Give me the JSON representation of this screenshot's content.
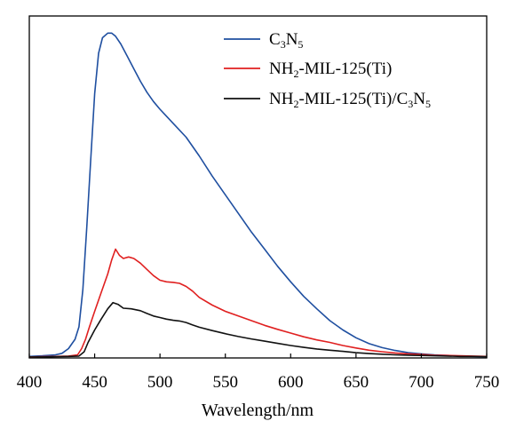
{
  "chart_data": {
    "type": "line",
    "title": "",
    "xlabel": "Wavelength/nm",
    "ylabel": "",
    "xlim": [
      400,
      750
    ],
    "ylim": [
      0,
      1.1
    ],
    "x_ticks": [
      400,
      450,
      500,
      550,
      600,
      650,
      700,
      750
    ],
    "y_ticks_visible": false,
    "grid": false,
    "legend_position": "top-right",
    "series": [
      {
        "legend_parts": [
          {
            "text": "C",
            "sub": false
          },
          {
            "text": "3",
            "sub": true
          },
          {
            "text": "N",
            "sub": false
          },
          {
            "text": "5",
            "sub": true
          }
        ],
        "color": "#1f4fa0",
        "points": [
          [
            400,
            0.005
          ],
          [
            410,
            0.007
          ],
          [
            420,
            0.01
          ],
          [
            425,
            0.015
          ],
          [
            430,
            0.03
          ],
          [
            435,
            0.06
          ],
          [
            438,
            0.1
          ],
          [
            441,
            0.22
          ],
          [
            444,
            0.42
          ],
          [
            447,
            0.64
          ],
          [
            450,
            0.85
          ],
          [
            453,
            0.98
          ],
          [
            456,
            1.03
          ],
          [
            460,
            1.045
          ],
          [
            463,
            1.045
          ],
          [
            466,
            1.035
          ],
          [
            470,
            1.01
          ],
          [
            475,
            0.97
          ],
          [
            480,
            0.93
          ],
          [
            485,
            0.89
          ],
          [
            490,
            0.855
          ],
          [
            495,
            0.825
          ],
          [
            500,
            0.8
          ],
          [
            510,
            0.755
          ],
          [
            520,
            0.71
          ],
          [
            530,
            0.65
          ],
          [
            540,
            0.585
          ],
          [
            550,
            0.525
          ],
          [
            560,
            0.465
          ],
          [
            570,
            0.405
          ],
          [
            580,
            0.35
          ],
          [
            590,
            0.295
          ],
          [
            600,
            0.245
          ],
          [
            610,
            0.198
          ],
          [
            620,
            0.158
          ],
          [
            630,
            0.12
          ],
          [
            640,
            0.09
          ],
          [
            650,
            0.065
          ],
          [
            660,
            0.046
          ],
          [
            670,
            0.033
          ],
          [
            680,
            0.024
          ],
          [
            690,
            0.017
          ],
          [
            700,
            0.013
          ],
          [
            710,
            0.01
          ],
          [
            720,
            0.008
          ],
          [
            730,
            0.006
          ],
          [
            740,
            0.005
          ],
          [
            750,
            0.004
          ]
        ]
      },
      {
        "legend_parts": [
          {
            "text": "NH",
            "sub": false
          },
          {
            "text": "2",
            "sub": true
          },
          {
            "text": "-MIL-125(Ti)",
            "sub": false
          }
        ],
        "color": "#e02020",
        "points": [
          [
            400,
            0.003
          ],
          [
            410,
            0.004
          ],
          [
            420,
            0.005
          ],
          [
            430,
            0.006
          ],
          [
            437,
            0.01
          ],
          [
            440,
            0.03
          ],
          [
            443,
            0.06
          ],
          [
            446,
            0.1
          ],
          [
            450,
            0.15
          ],
          [
            455,
            0.21
          ],
          [
            460,
            0.27
          ],
          [
            463,
            0.315
          ],
          [
            466,
            0.35
          ],
          [
            469,
            0.33
          ],
          [
            472,
            0.32
          ],
          [
            476,
            0.325
          ],
          [
            480,
            0.32
          ],
          [
            485,
            0.305
          ],
          [
            490,
            0.285
          ],
          [
            495,
            0.265
          ],
          [
            500,
            0.25
          ],
          [
            505,
            0.245
          ],
          [
            510,
            0.243
          ],
          [
            515,
            0.24
          ],
          [
            520,
            0.23
          ],
          [
            525,
            0.215
          ],
          [
            530,
            0.195
          ],
          [
            540,
            0.17
          ],
          [
            550,
            0.15
          ],
          [
            560,
            0.135
          ],
          [
            570,
            0.12
          ],
          [
            580,
            0.105
          ],
          [
            590,
            0.092
          ],
          [
            600,
            0.08
          ],
          [
            610,
            0.068
          ],
          [
            620,
            0.058
          ],
          [
            630,
            0.05
          ],
          [
            640,
            0.04
          ],
          [
            650,
            0.032
          ],
          [
            660,
            0.025
          ],
          [
            670,
            0.02
          ],
          [
            680,
            0.016
          ],
          [
            690,
            0.013
          ],
          [
            700,
            0.011
          ],
          [
            710,
            0.009
          ],
          [
            720,
            0.008
          ],
          [
            730,
            0.007
          ],
          [
            740,
            0.006
          ],
          [
            750,
            0.005
          ]
        ]
      },
      {
        "legend_parts": [
          {
            "text": "NH",
            "sub": false
          },
          {
            "text": "2",
            "sub": true
          },
          {
            "text": "-MIL-125(Ti)/C",
            "sub": false
          },
          {
            "text": "3",
            "sub": true
          },
          {
            "text": "N",
            "sub": false
          },
          {
            "text": "5",
            "sub": true
          }
        ],
        "color": "#111111",
        "points": [
          [
            400,
            0.003
          ],
          [
            410,
            0.003
          ],
          [
            420,
            0.004
          ],
          [
            430,
            0.005
          ],
          [
            438,
            0.006
          ],
          [
            442,
            0.02
          ],
          [
            445,
            0.05
          ],
          [
            450,
            0.09
          ],
          [
            455,
            0.125
          ],
          [
            460,
            0.158
          ],
          [
            464,
            0.178
          ],
          [
            468,
            0.172
          ],
          [
            472,
            0.16
          ],
          [
            478,
            0.158
          ],
          [
            485,
            0.152
          ],
          [
            490,
            0.143
          ],
          [
            495,
            0.135
          ],
          [
            500,
            0.13
          ],
          [
            505,
            0.125
          ],
          [
            510,
            0.121
          ],
          [
            515,
            0.119
          ],
          [
            520,
            0.114
          ],
          [
            525,
            0.106
          ],
          [
            530,
            0.099
          ],
          [
            540,
            0.088
          ],
          [
            550,
            0.078
          ],
          [
            560,
            0.069
          ],
          [
            570,
            0.061
          ],
          [
            580,
            0.054
          ],
          [
            590,
            0.047
          ],
          [
            600,
            0.04
          ],
          [
            610,
            0.034
          ],
          [
            620,
            0.029
          ],
          [
            630,
            0.025
          ],
          [
            640,
            0.021
          ],
          [
            650,
            0.017
          ],
          [
            660,
            0.014
          ],
          [
            670,
            0.012
          ],
          [
            680,
            0.01
          ],
          [
            690,
            0.009
          ],
          [
            700,
            0.008
          ],
          [
            710,
            0.007
          ],
          [
            720,
            0.006
          ],
          [
            730,
            0.005
          ],
          [
            740,
            0.005
          ],
          [
            750,
            0.004
          ]
        ]
      }
    ]
  }
}
